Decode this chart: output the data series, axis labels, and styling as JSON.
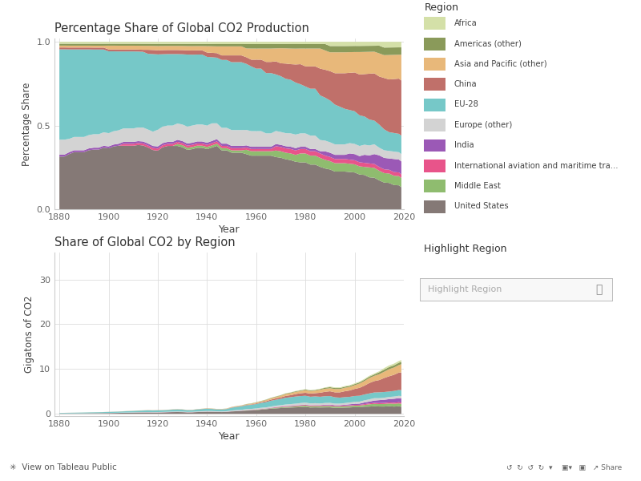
{
  "title1": "Percentage Share of Global CO2 Production",
  "title2": "Share of Global CO2 by Region",
  "ylabel1": "Percentage Share",
  "ylabel2": "Gigatons of CO2",
  "xlabel": "Year",
  "legend_title": "Region",
  "bg_color": "#ffffff",
  "plot_bg_color": "#ffffff",
  "grid_color": "#dddddd",
  "regions_bottom_to_top": [
    "United States",
    "Middle East",
    "International aviation and maritime tra...",
    "India",
    "Europe (other)",
    "EU-28",
    "China",
    "Asia and Pacific (other)",
    "Americas (other)",
    "Africa"
  ],
  "legend_order": [
    "Africa",
    "Americas (other)",
    "Asia and Pacific (other)",
    "China",
    "EU-28",
    "Europe (other)",
    "India",
    "International aviation and maritime tra...",
    "Middle East",
    "United States"
  ],
  "colors": {
    "United States": "#857976",
    "Middle East": "#8fbc6f",
    "International aviation and maritime tra...": "#e8548a",
    "India": "#9b59b6",
    "Europe (other)": "#d3d3d3",
    "EU-28": "#76c8c8",
    "China": "#c0706a",
    "Asia and Pacific (other)": "#e8b87a",
    "Americas (other)": "#8a9a5a",
    "Africa": "#d4e0a8"
  },
  "years": [
    1880,
    1882,
    1884,
    1886,
    1888,
    1890,
    1892,
    1894,
    1896,
    1898,
    1900,
    1902,
    1904,
    1906,
    1908,
    1910,
    1912,
    1914,
    1916,
    1918,
    1920,
    1922,
    1924,
    1926,
    1928,
    1930,
    1932,
    1934,
    1936,
    1938,
    1940,
    1942,
    1944,
    1946,
    1948,
    1950,
    1952,
    1954,
    1956,
    1958,
    1960,
    1962,
    1964,
    1966,
    1968,
    1970,
    1972,
    1974,
    1976,
    1978,
    1980,
    1982,
    1984,
    1986,
    1988,
    1990,
    1992,
    1994,
    1996,
    1998,
    2000,
    2002,
    2004,
    2006,
    2008,
    2010,
    2012,
    2014,
    2016,
    2018,
    2019
  ],
  "shares": {
    "United States": [
      0.28,
      0.28,
      0.29,
      0.3,
      0.3,
      0.3,
      0.31,
      0.31,
      0.31,
      0.32,
      0.32,
      0.33,
      0.33,
      0.33,
      0.33,
      0.33,
      0.33,
      0.32,
      0.31,
      0.29,
      0.28,
      0.3,
      0.31,
      0.31,
      0.31,
      0.3,
      0.28,
      0.28,
      0.29,
      0.29,
      0.28,
      0.28,
      0.28,
      0.26,
      0.26,
      0.25,
      0.25,
      0.25,
      0.25,
      0.24,
      0.24,
      0.24,
      0.24,
      0.24,
      0.24,
      0.24,
      0.23,
      0.22,
      0.21,
      0.21,
      0.21,
      0.2,
      0.2,
      0.19,
      0.19,
      0.19,
      0.18,
      0.18,
      0.18,
      0.18,
      0.18,
      0.17,
      0.17,
      0.16,
      0.16,
      0.15,
      0.14,
      0.14,
      0.13,
      0.13,
      0.12
    ],
    "Middle East": [
      0.0,
      0.0,
      0.0,
      0.0,
      0.0,
      0.0,
      0.0,
      0.0,
      0.0,
      0.0,
      0.0,
      0.0,
      0.0,
      0.0,
      0.0,
      0.0,
      0.0,
      0.0,
      0.0,
      0.0,
      0.0,
      0.0,
      0.0,
      0.0,
      0.01,
      0.01,
      0.01,
      0.01,
      0.01,
      0.01,
      0.01,
      0.01,
      0.01,
      0.01,
      0.01,
      0.01,
      0.01,
      0.01,
      0.02,
      0.02,
      0.02,
      0.02,
      0.02,
      0.02,
      0.03,
      0.03,
      0.03,
      0.03,
      0.03,
      0.04,
      0.04,
      0.04,
      0.04,
      0.04,
      0.04,
      0.04,
      0.04,
      0.04,
      0.04,
      0.04,
      0.04,
      0.04,
      0.04,
      0.05,
      0.05,
      0.05,
      0.05,
      0.05,
      0.05,
      0.05,
      0.05
    ],
    "International aviation and maritime tra...": [
      0.0,
      0.0,
      0.0,
      0.0,
      0.0,
      0.0,
      0.0,
      0.0,
      0.0,
      0.0,
      0.0,
      0.0,
      0.0,
      0.01,
      0.01,
      0.01,
      0.01,
      0.01,
      0.01,
      0.01,
      0.01,
      0.01,
      0.01,
      0.01,
      0.01,
      0.01,
      0.01,
      0.01,
      0.01,
      0.01,
      0.01,
      0.01,
      0.01,
      0.01,
      0.01,
      0.01,
      0.01,
      0.01,
      0.01,
      0.01,
      0.01,
      0.01,
      0.01,
      0.01,
      0.02,
      0.02,
      0.02,
      0.02,
      0.02,
      0.02,
      0.02,
      0.02,
      0.02,
      0.02,
      0.02,
      0.02,
      0.02,
      0.02,
      0.02,
      0.02,
      0.02,
      0.02,
      0.02,
      0.02,
      0.02,
      0.02,
      0.02,
      0.02,
      0.02,
      0.02,
      0.02
    ],
    "India": [
      0.01,
      0.01,
      0.01,
      0.01,
      0.01,
      0.01,
      0.01,
      0.01,
      0.01,
      0.01,
      0.01,
      0.01,
      0.01,
      0.01,
      0.01,
      0.01,
      0.01,
      0.01,
      0.01,
      0.01,
      0.01,
      0.01,
      0.01,
      0.01,
      0.01,
      0.01,
      0.01,
      0.01,
      0.01,
      0.01,
      0.01,
      0.01,
      0.01,
      0.01,
      0.01,
      0.01,
      0.01,
      0.01,
      0.01,
      0.01,
      0.01,
      0.01,
      0.01,
      0.01,
      0.01,
      0.01,
      0.01,
      0.01,
      0.01,
      0.01,
      0.01,
      0.01,
      0.01,
      0.01,
      0.02,
      0.02,
      0.02,
      0.02,
      0.02,
      0.03,
      0.03,
      0.03,
      0.04,
      0.04,
      0.05,
      0.06,
      0.06,
      0.06,
      0.07,
      0.07,
      0.07
    ],
    "Europe (other)": [
      0.08,
      0.08,
      0.07,
      0.07,
      0.07,
      0.07,
      0.07,
      0.07,
      0.07,
      0.07,
      0.07,
      0.07,
      0.07,
      0.07,
      0.07,
      0.07,
      0.07,
      0.07,
      0.07,
      0.07,
      0.08,
      0.08,
      0.08,
      0.08,
      0.08,
      0.08,
      0.08,
      0.08,
      0.08,
      0.08,
      0.08,
      0.08,
      0.07,
      0.07,
      0.07,
      0.07,
      0.07,
      0.07,
      0.07,
      0.07,
      0.07,
      0.07,
      0.06,
      0.06,
      0.06,
      0.06,
      0.06,
      0.06,
      0.06,
      0.06,
      0.06,
      0.06,
      0.06,
      0.05,
      0.05,
      0.05,
      0.05,
      0.05,
      0.05,
      0.05,
      0.05,
      0.05,
      0.05,
      0.05,
      0.05,
      0.04,
      0.04,
      0.04,
      0.04,
      0.04,
      0.04
    ],
    "EU-28": [
      0.48,
      0.48,
      0.47,
      0.46,
      0.46,
      0.46,
      0.45,
      0.44,
      0.44,
      0.43,
      0.43,
      0.42,
      0.41,
      0.4,
      0.4,
      0.4,
      0.39,
      0.38,
      0.38,
      0.38,
      0.36,
      0.35,
      0.35,
      0.35,
      0.34,
      0.34,
      0.34,
      0.33,
      0.33,
      0.33,
      0.32,
      0.3,
      0.29,
      0.3,
      0.3,
      0.3,
      0.3,
      0.3,
      0.3,
      0.29,
      0.28,
      0.28,
      0.27,
      0.27,
      0.26,
      0.26,
      0.25,
      0.24,
      0.23,
      0.22,
      0.21,
      0.21,
      0.21,
      0.2,
      0.2,
      0.2,
      0.19,
      0.18,
      0.17,
      0.16,
      0.16,
      0.15,
      0.14,
      0.13,
      0.12,
      0.12,
      0.11,
      0.1,
      0.1,
      0.1,
      0.1
    ],
    "China": [
      0.01,
      0.01,
      0.01,
      0.01,
      0.01,
      0.01,
      0.01,
      0.01,
      0.01,
      0.01,
      0.01,
      0.01,
      0.01,
      0.01,
      0.01,
      0.01,
      0.01,
      0.01,
      0.02,
      0.02,
      0.02,
      0.02,
      0.02,
      0.02,
      0.02,
      0.02,
      0.02,
      0.02,
      0.02,
      0.02,
      0.02,
      0.02,
      0.02,
      0.02,
      0.02,
      0.03,
      0.03,
      0.03,
      0.03,
      0.03,
      0.04,
      0.04,
      0.05,
      0.05,
      0.06,
      0.06,
      0.07,
      0.07,
      0.08,
      0.09,
      0.09,
      0.1,
      0.1,
      0.12,
      0.13,
      0.14,
      0.15,
      0.16,
      0.17,
      0.18,
      0.19,
      0.2,
      0.21,
      0.23,
      0.24,
      0.25,
      0.27,
      0.28,
      0.29,
      0.3,
      0.3
    ],
    "Asia and Pacific (other)": [
      0.01,
      0.01,
      0.01,
      0.01,
      0.01,
      0.01,
      0.01,
      0.01,
      0.01,
      0.01,
      0.02,
      0.02,
      0.02,
      0.02,
      0.02,
      0.02,
      0.02,
      0.02,
      0.02,
      0.02,
      0.02,
      0.02,
      0.02,
      0.02,
      0.02,
      0.02,
      0.02,
      0.02,
      0.02,
      0.02,
      0.03,
      0.03,
      0.03,
      0.04,
      0.04,
      0.04,
      0.04,
      0.04,
      0.04,
      0.05,
      0.05,
      0.05,
      0.06,
      0.06,
      0.06,
      0.07,
      0.07,
      0.07,
      0.07,
      0.07,
      0.08,
      0.08,
      0.08,
      0.09,
      0.09,
      0.09,
      0.1,
      0.1,
      0.1,
      0.1,
      0.1,
      0.11,
      0.11,
      0.11,
      0.11,
      0.12,
      0.12,
      0.13,
      0.13,
      0.13,
      0.14
    ],
    "Americas (other)": [
      0.01,
      0.01,
      0.01,
      0.01,
      0.01,
      0.01,
      0.01,
      0.01,
      0.01,
      0.01,
      0.01,
      0.01,
      0.01,
      0.01,
      0.01,
      0.01,
      0.01,
      0.01,
      0.01,
      0.01,
      0.01,
      0.01,
      0.01,
      0.01,
      0.01,
      0.01,
      0.01,
      0.01,
      0.01,
      0.01,
      0.01,
      0.01,
      0.01,
      0.01,
      0.01,
      0.01,
      0.01,
      0.01,
      0.02,
      0.02,
      0.02,
      0.02,
      0.02,
      0.02,
      0.02,
      0.02,
      0.02,
      0.02,
      0.02,
      0.02,
      0.02,
      0.02,
      0.02,
      0.02,
      0.03,
      0.03,
      0.03,
      0.03,
      0.03,
      0.03,
      0.03,
      0.03,
      0.03,
      0.03,
      0.03,
      0.04,
      0.04,
      0.04,
      0.04,
      0.04,
      0.04
    ],
    "Africa": [
      0.01,
      0.01,
      0.01,
      0.01,
      0.01,
      0.01,
      0.01,
      0.01,
      0.01,
      0.01,
      0.01,
      0.01,
      0.01,
      0.01,
      0.01,
      0.01,
      0.01,
      0.01,
      0.01,
      0.01,
      0.01,
      0.01,
      0.01,
      0.01,
      0.01,
      0.01,
      0.01,
      0.01,
      0.01,
      0.01,
      0.01,
      0.01,
      0.01,
      0.01,
      0.01,
      0.01,
      0.01,
      0.01,
      0.01,
      0.01,
      0.01,
      0.01,
      0.01,
      0.01,
      0.01,
      0.01,
      0.01,
      0.01,
      0.01,
      0.01,
      0.01,
      0.01,
      0.01,
      0.01,
      0.01,
      0.02,
      0.02,
      0.02,
      0.02,
      0.02,
      0.02,
      0.02,
      0.02,
      0.02,
      0.02,
      0.02,
      0.03,
      0.03,
      0.03,
      0.03,
      0.03
    ]
  },
  "total_gt": [
    0.2,
    0.22,
    0.24,
    0.26,
    0.28,
    0.3,
    0.33,
    0.35,
    0.37,
    0.4,
    0.44,
    0.48,
    0.52,
    0.58,
    0.63,
    0.68,
    0.75,
    0.78,
    0.82,
    0.8,
    0.82,
    0.85,
    0.92,
    1.0,
    1.05,
    1.0,
    0.88,
    0.9,
    1.05,
    1.15,
    1.25,
    1.2,
    1.1,
    1.1,
    1.2,
    1.55,
    1.75,
    1.9,
    2.2,
    2.35,
    2.6,
    2.9,
    3.2,
    3.6,
    3.9,
    4.2,
    4.6,
    4.8,
    5.1,
    5.3,
    5.5,
    5.3,
    5.4,
    5.6,
    5.9,
    6.1,
    5.9,
    5.9,
    6.2,
    6.4,
    6.8,
    7.2,
    7.8,
    8.5,
    9.0,
    9.5,
    10.2,
    10.8,
    11.2,
    11.8,
    12.0
  ],
  "highlight_box_text": "Highlight Region",
  "highlight_box_label": "Highlight Region",
  "tableau_text": "View on Tableau Public"
}
